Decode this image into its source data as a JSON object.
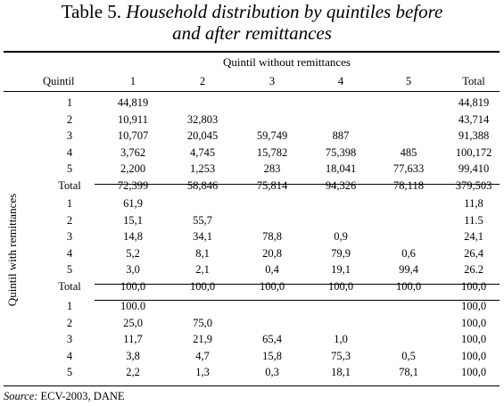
{
  "title": {
    "prefix": "Table 5.",
    "italic_line1": "Household distribution by quintiles before",
    "italic_line2": "and after remittances"
  },
  "header": {
    "group_label": "Quintil without remittances",
    "row_header": "Quintil",
    "columns": [
      "1",
      "2",
      "3",
      "4",
      "5",
      "Total"
    ]
  },
  "side_label": "Quintil with remittances",
  "sections": [
    {
      "rows": [
        {
          "label": "1",
          "cells": [
            "44,819",
            "",
            "",
            "",
            "",
            "44,819"
          ]
        },
        {
          "label": "2",
          "cells": [
            "10,911",
            "32,803",
            "",
            "",
            "",
            "43,714"
          ]
        },
        {
          "label": "3",
          "cells": [
            "10,707",
            "20,045",
            "59,749",
            "887",
            "",
            "91,388"
          ]
        },
        {
          "label": "4",
          "cells": [
            "3,762",
            "4,745",
            "15,782",
            "75,398",
            "485",
            "100,172"
          ]
        },
        {
          "label": "5",
          "cells": [
            "2,200",
            "1,253",
            "283",
            "18,041",
            "77,633",
            "99,410"
          ]
        },
        {
          "label": "Total",
          "cells": [
            "72,399",
            "58,846",
            "75,814",
            "94,326",
            "78,118",
            "379,503"
          ]
        }
      ]
    },
    {
      "rows": [
        {
          "label": "1",
          "cells": [
            "61,9",
            "",
            "",
            "",
            "",
            "11,8"
          ]
        },
        {
          "label": "2",
          "cells": [
            "15,1",
            "55,7",
            "",
            "",
            "",
            "11.5"
          ]
        },
        {
          "label": "3",
          "cells": [
            "14,8",
            "34,1",
            "78,8",
            "0,9",
            "",
            "24,1"
          ]
        },
        {
          "label": "4",
          "cells": [
            "5,2",
            "8,1",
            "20,8",
            "79,9",
            "0,6",
            "26,4"
          ]
        },
        {
          "label": "5",
          "cells": [
            "3,0",
            "2,1",
            "0,4",
            "19,1",
            "99,4",
            "26.2"
          ]
        },
        {
          "label": "Total",
          "cells": [
            "100,0",
            "100,0",
            "100,0",
            "100,0",
            "100,0",
            "100,0"
          ]
        }
      ]
    },
    {
      "rows": [
        {
          "label": "1",
          "cells": [
            "100.0",
            "",
            "",
            "",
            "",
            "100,0"
          ]
        },
        {
          "label": "2",
          "cells": [
            "25,0",
            "75,0",
            "",
            "",
            "",
            "100,0"
          ]
        },
        {
          "label": "3",
          "cells": [
            "11,7",
            "21,9",
            "65,4",
            "1,0",
            "",
            "100,0"
          ]
        },
        {
          "label": "4",
          "cells": [
            "3,8",
            "4,7",
            "15,8",
            "75,3",
            "0,5",
            "100,0"
          ]
        },
        {
          "label": "5",
          "cells": [
            "2,2",
            "1,3",
            "0,3",
            "18,1",
            "78,1",
            "100,0"
          ]
        }
      ]
    }
  ],
  "source": {
    "label": "Source:",
    "text": "ECV-2003, DANE"
  }
}
